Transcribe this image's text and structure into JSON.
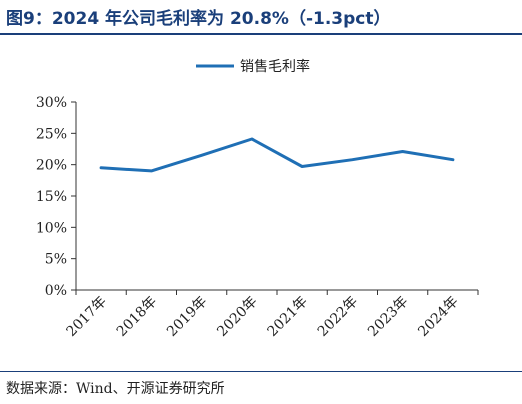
{
  "title": "图9：2024 年公司毛利率为 20.8%（-1.3pct）",
  "source": "数据来源：Wind、开源证券研究所",
  "colors": {
    "accent": "#1a3f7a",
    "series": "#1f6fb5"
  },
  "chart_data": {
    "type": "line",
    "x": [
      "2017年",
      "2018年",
      "2019年",
      "2020年",
      "2021年",
      "2022年",
      "2023年",
      "2024年"
    ],
    "series": [
      {
        "name": "销售毛利率",
        "values": [
          19.5,
          19.0,
          21.5,
          24.1,
          19.7,
          20.8,
          22.1,
          20.8
        ]
      }
    ],
    "ylim": [
      0,
      30
    ],
    "yticks": [
      "0%",
      "5%",
      "10%",
      "15%",
      "20%",
      "25%",
      "30%"
    ],
    "legend": "top-center",
    "grid": false
  }
}
